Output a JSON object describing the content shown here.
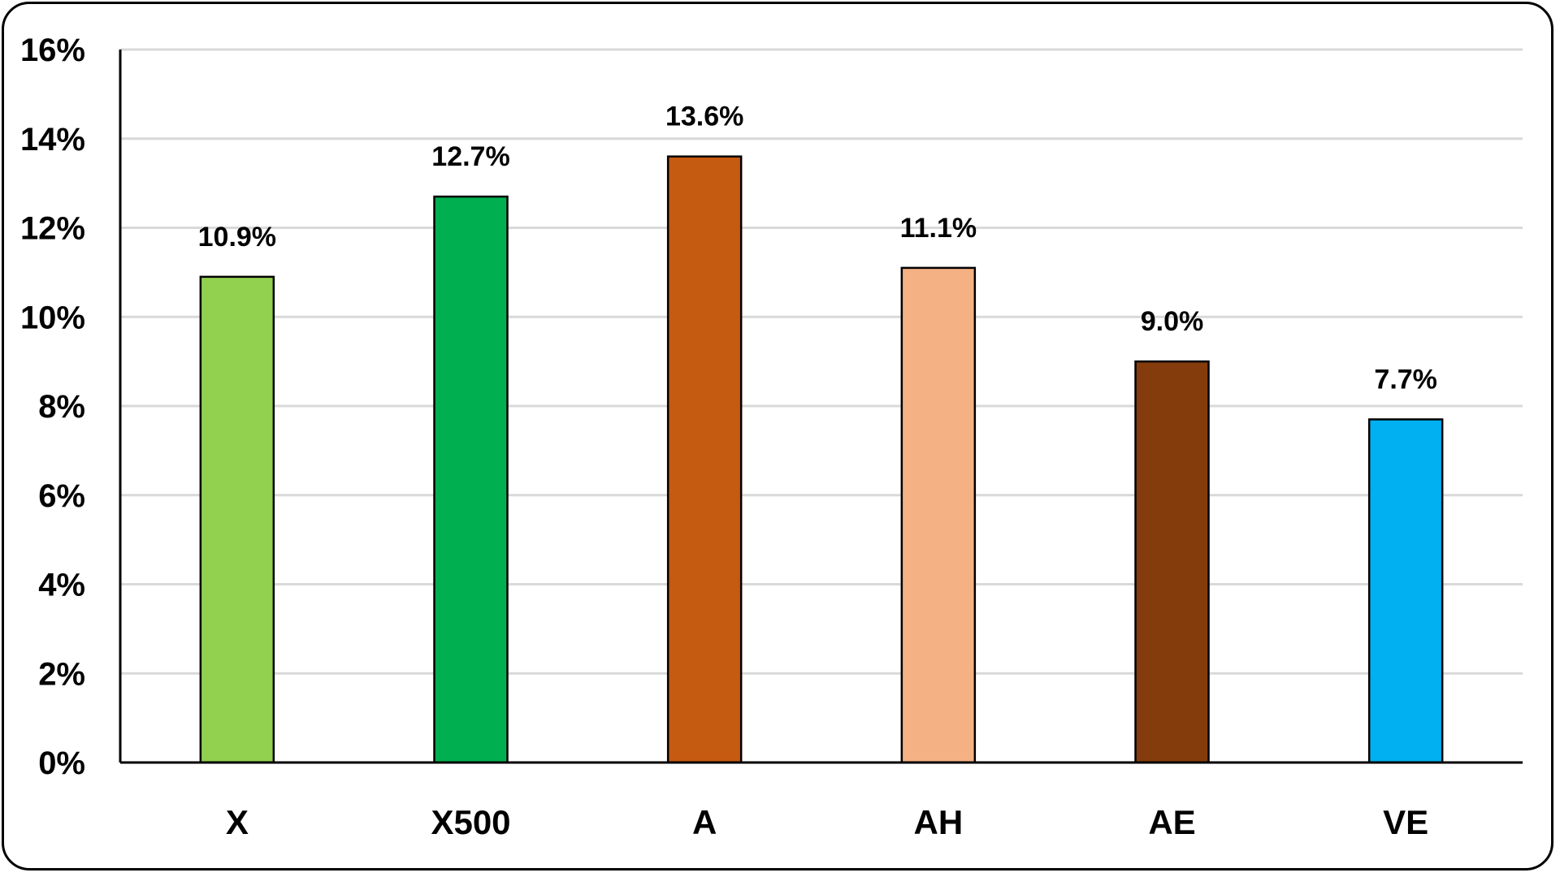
{
  "chart_data": {
    "type": "bar",
    "categories": [
      "X",
      "X500",
      "A",
      "AH",
      "AE",
      "VE"
    ],
    "values": [
      10.9,
      12.7,
      13.6,
      11.1,
      9.0,
      7.7
    ],
    "data_labels": [
      "10.9%",
      "12.7%",
      "13.6%",
      "11.1%",
      "9.0%",
      "7.7%"
    ],
    "bar_colors": [
      "#92d050",
      "#00b050",
      "#c55a11",
      "#f4b183",
      "#843c0c",
      "#00b0f0"
    ],
    "yticks": [
      0,
      2,
      4,
      6,
      8,
      10,
      12,
      14,
      16
    ],
    "ytick_labels": [
      "0%",
      "2%",
      "4%",
      "6%",
      "8%",
      "10%",
      "12%",
      "14%",
      "16%"
    ],
    "ylim": [
      0,
      16
    ],
    "grid": true,
    "legend": "none",
    "title": "",
    "xlabel": "",
    "ylabel": ""
  }
}
